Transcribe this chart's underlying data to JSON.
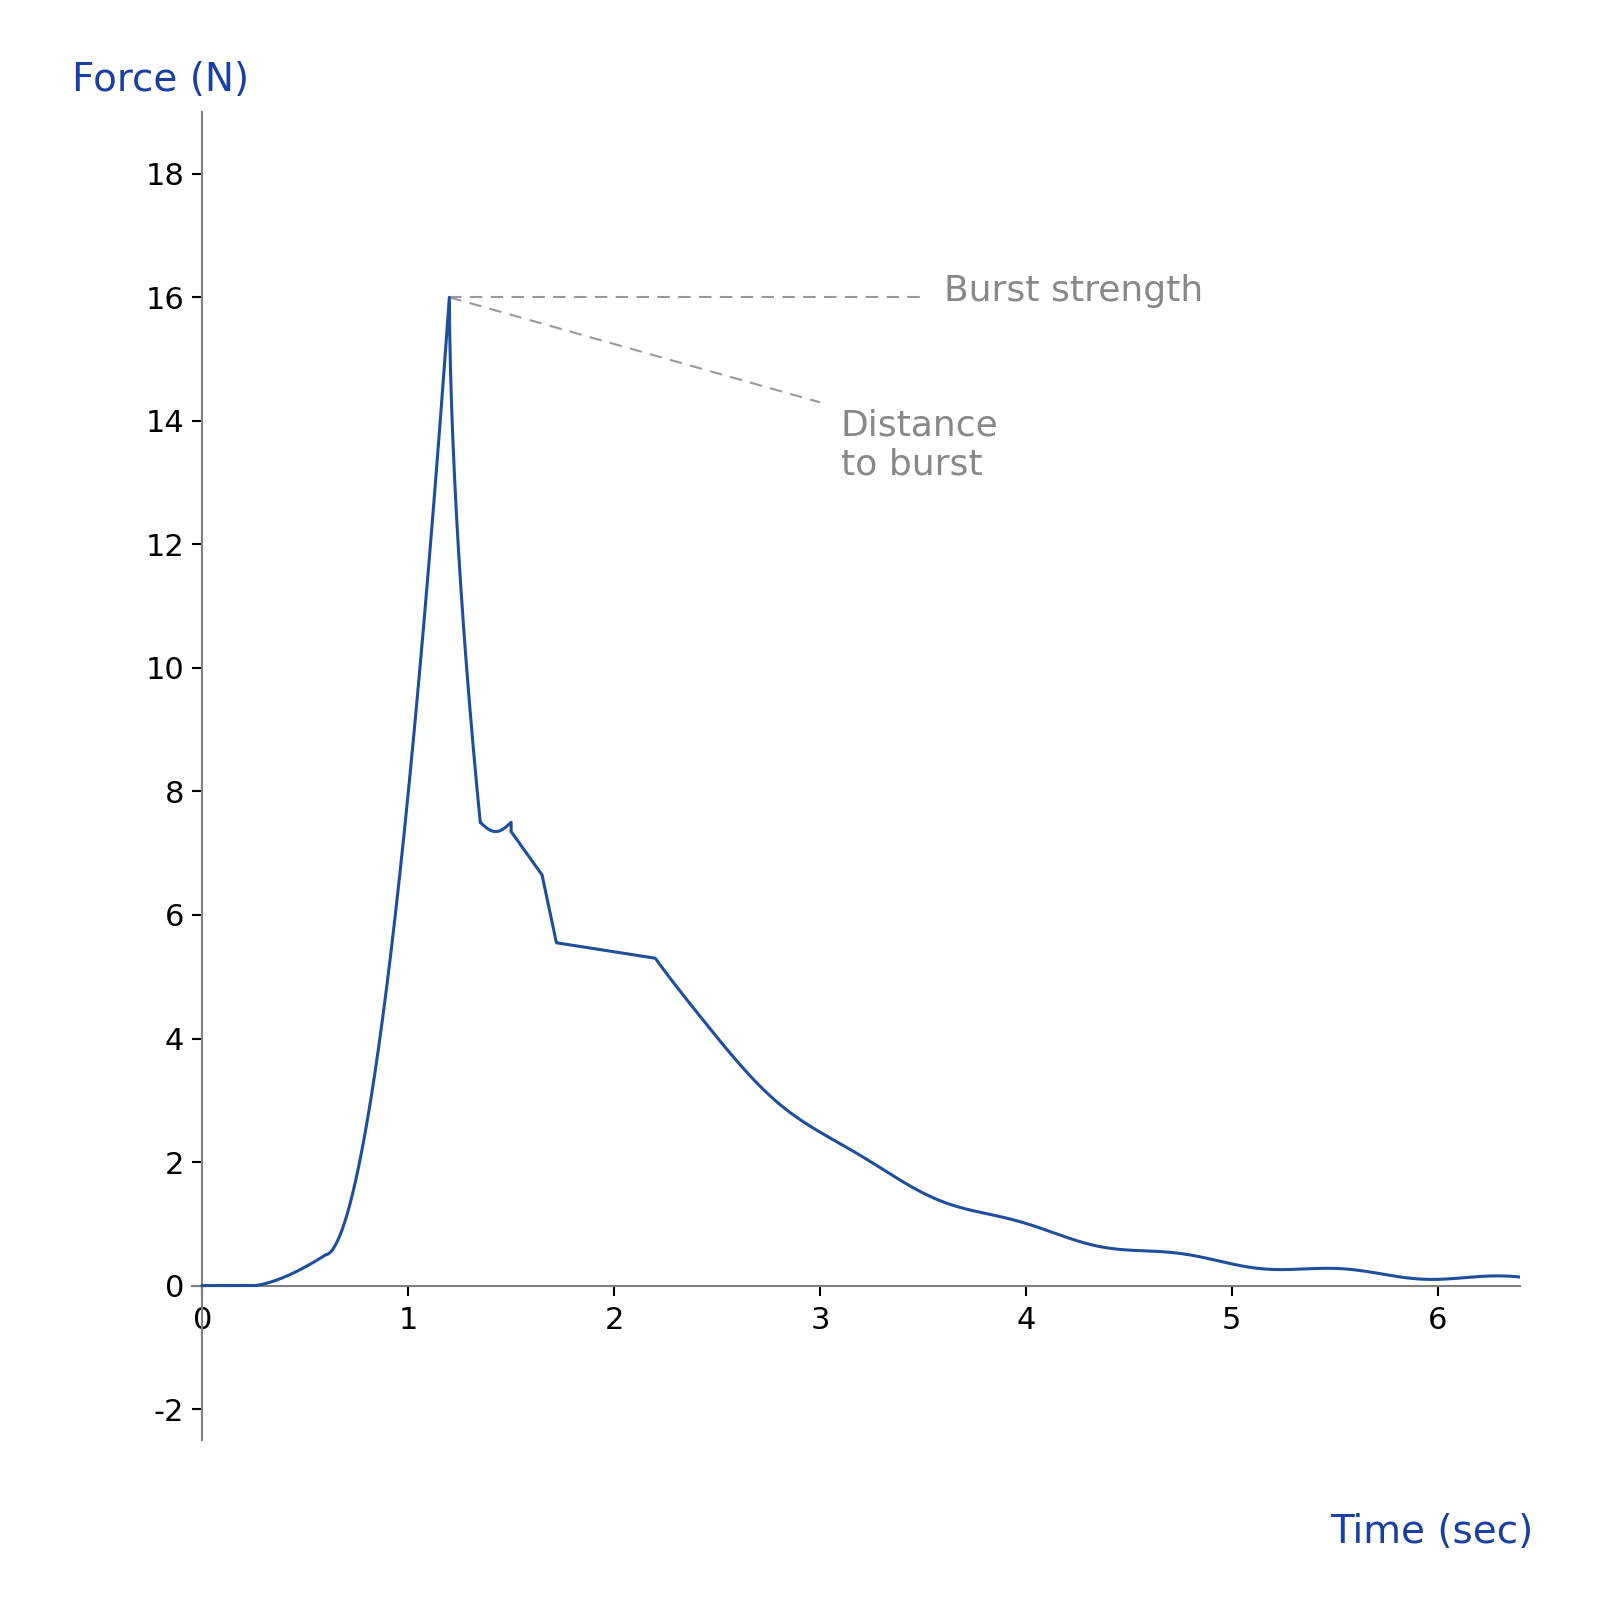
{
  "xlabel": "Time (sec)",
  "ylabel": "Force (N)",
  "xlabel_color": "#1a3fa3",
  "ylabel_color": "#1a3fa3",
  "line_color": "#1f4e9c",
  "axis_color": "#808080",
  "tick_color": "#000000",
  "xlim": [
    -0.05,
    6.4
  ],
  "ylim": [
    -2.5,
    19.0
  ],
  "xticks": [
    0,
    1,
    2,
    3,
    4,
    5,
    6
  ],
  "yticks": [
    -2,
    0,
    2,
    4,
    6,
    8,
    10,
    12,
    14,
    16,
    18
  ],
  "peak_x": 1.2,
  "peak_y": 16.0,
  "annotation_burst_strength": "Burst strength",
  "annotation_distance": "Distance\nto burst",
  "annotation_color": "#888888",
  "dashed_line_color": "#999999",
  "xlabel_fontsize": 28,
  "ylabel_fontsize": 28,
  "tick_fontsize": 22,
  "annotation_fontsize": 26,
  "line_width": 2.2,
  "background_color": "#ffffff"
}
